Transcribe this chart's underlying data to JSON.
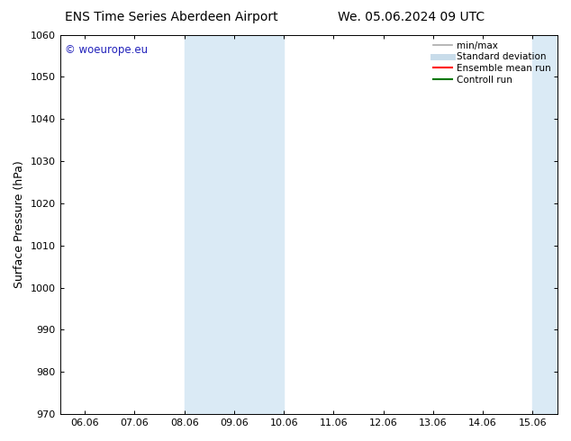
{
  "title_left": "ENS Time Series Aberdeen Airport",
  "title_right": "We. 05.06.2024 09 UTC",
  "ylabel": "Surface Pressure (hPa)",
  "ylim": [
    970,
    1060
  ],
  "yticks": [
    970,
    980,
    990,
    1000,
    1010,
    1020,
    1030,
    1040,
    1050,
    1060
  ],
  "xtick_labels": [
    "06.06",
    "07.06",
    "08.06",
    "09.06",
    "10.06",
    "11.06",
    "12.06",
    "13.06",
    "14.06",
    "15.06"
  ],
  "xtick_positions": [
    0,
    1,
    2,
    3,
    4,
    5,
    6,
    7,
    8,
    9
  ],
  "xlim_start": -0.5,
  "xlim_end": 9.5,
  "shaded_bands": [
    {
      "xmin": 2.0,
      "xmax": 3.0,
      "color": "#daeaf5"
    },
    {
      "xmin": 3.0,
      "xmax": 4.0,
      "color": "#daeaf5"
    },
    {
      "xmin": 9.0,
      "xmax": 9.5,
      "color": "#daeaf5"
    }
  ],
  "watermark_text": "© woeurope.eu",
  "watermark_color": "#2222bb",
  "background_color": "#ffffff",
  "title_fontsize": 10,
  "tick_fontsize": 8,
  "ylabel_fontsize": 9,
  "legend_items": [
    {
      "label": "min/max",
      "color": "#aaaaaa",
      "lw": 1.2,
      "style": "solid"
    },
    {
      "label": "Standard deviation",
      "color": "#c8dcea",
      "lw": 5,
      "style": "solid"
    },
    {
      "label": "Ensemble mean run",
      "color": "#ff0000",
      "lw": 1.5,
      "style": "solid"
    },
    {
      "label": "Controll run",
      "color": "#007700",
      "lw": 1.5,
      "style": "solid"
    }
  ]
}
